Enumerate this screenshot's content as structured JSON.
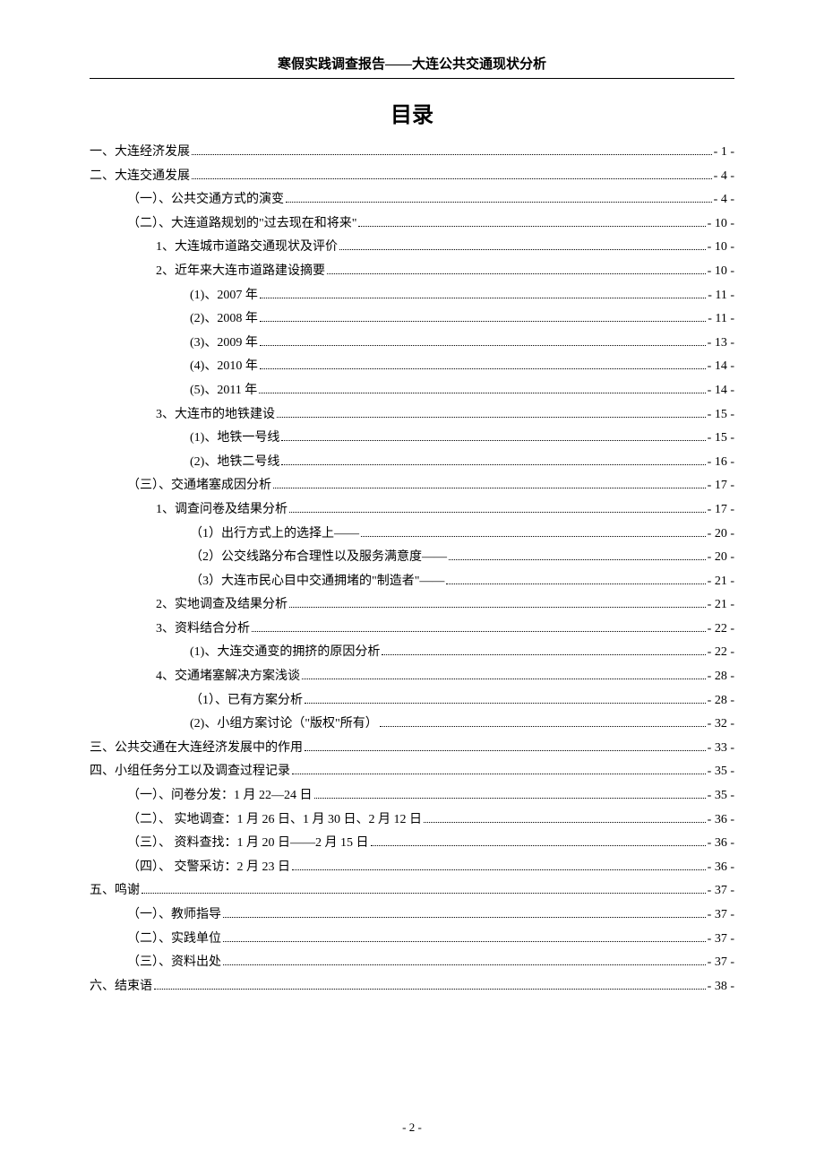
{
  "header": "寒假实践调查报告——大连公共交通现状分析",
  "title": "目录",
  "footer": "- 2 -",
  "toc": [
    {
      "indent": 0,
      "label": "一、大连经济发展",
      "page": "- 1 -"
    },
    {
      "indent": 0,
      "label": "二、大连交通发展",
      "page": "- 4 -"
    },
    {
      "indent": 1,
      "label": "（一）、公共交通方式的演变",
      "page": "- 4 -"
    },
    {
      "indent": 1,
      "label": "（二）、大连道路规划的\"过去现在和将来\"",
      "page": "- 10 -"
    },
    {
      "indent": 2,
      "label": "1、大连城市道路交通现状及评价",
      "page": "- 10 -"
    },
    {
      "indent": 2,
      "label": "2、近年来大连市道路建设摘要",
      "page": "- 10 -"
    },
    {
      "indent": 3,
      "label": "(1)、2007 年",
      "page": "- 11 -"
    },
    {
      "indent": 3,
      "label": "(2)、2008 年",
      "page": "- 11 -"
    },
    {
      "indent": 3,
      "label": "(3)、2009 年",
      "page": "- 13 -"
    },
    {
      "indent": 3,
      "label": "(4)、2010 年",
      "page": "- 14 -"
    },
    {
      "indent": 3,
      "label": "(5)、2011 年",
      "page": "- 14 -"
    },
    {
      "indent": 2,
      "label": "3、大连市的地铁建设",
      "page": "- 15 -"
    },
    {
      "indent": 3,
      "label": "(1)、地铁一号线",
      "page": "- 15 -"
    },
    {
      "indent": 3,
      "label": "(2)、地铁二号线",
      "page": "- 16 -"
    },
    {
      "indent": 1,
      "label": "（三）、交通堵塞成因分析",
      "page": "- 17 -"
    },
    {
      "indent": 2,
      "label": "1、调查问卷及结果分析",
      "page": "- 17 -"
    },
    {
      "indent": 3,
      "label": "（1）出行方式上的选择上——",
      "page": "- 20 -"
    },
    {
      "indent": 3,
      "label": "（2）公交线路分布合理性以及服务满意度——",
      "page": "- 20 -"
    },
    {
      "indent": 3,
      "label": "（3）大连市民心目中交通拥堵的\"制造者\"——",
      "page": "- 21 -"
    },
    {
      "indent": 2,
      "label": "2、实地调查及结果分析",
      "page": "- 21 -"
    },
    {
      "indent": 2,
      "label": "3、资料结合分析",
      "page": "- 22 -"
    },
    {
      "indent": 3,
      "label": "(1)、大连交通变的拥挤的原因分析",
      "page": "- 22 -"
    },
    {
      "indent": 2,
      "label": "4、交通堵塞解决方案浅谈",
      "page": "- 28 -"
    },
    {
      "indent": 3,
      "label": "（1）、已有方案分析",
      "page": "- 28 -"
    },
    {
      "indent": 3,
      "label": "(2)、小组方案讨论（\"版权\"所有）",
      "page": "- 32 -"
    },
    {
      "indent": 0,
      "label": "三、公共交通在大连经济发展中的作用",
      "page": "- 33 -"
    },
    {
      "indent": 0,
      "label": "四、小组任务分工以及调查过程记录",
      "page": "- 35 -"
    },
    {
      "indent": 1,
      "label": "（一）、问卷分发：1 月 22—24 日",
      "page": "- 35 -"
    },
    {
      "indent": 1,
      "label": "（二）、  实地调查：1 月 26 日、1 月 30 日、2 月 12 日",
      "page": "- 36 -"
    },
    {
      "indent": 1,
      "label": "（三）、  资料查找：1 月 20 日——2 月 15 日",
      "page": "- 36 -"
    },
    {
      "indent": 1,
      "label": "（四）、  交警采访：2 月 23 日",
      "page": "- 36 -"
    },
    {
      "indent": 0,
      "label": "五、鸣谢",
      "page": "- 37 -"
    },
    {
      "indent": 1,
      "label": "（一）、教师指导",
      "page": "- 37 -"
    },
    {
      "indent": 1,
      "label": "（二）、实践单位",
      "page": "- 37 -"
    },
    {
      "indent": 1,
      "label": "（三）、资料出处",
      "page": "- 37 -"
    },
    {
      "indent": 0,
      "label": "六、结束语",
      "page": "- 38 -"
    }
  ]
}
